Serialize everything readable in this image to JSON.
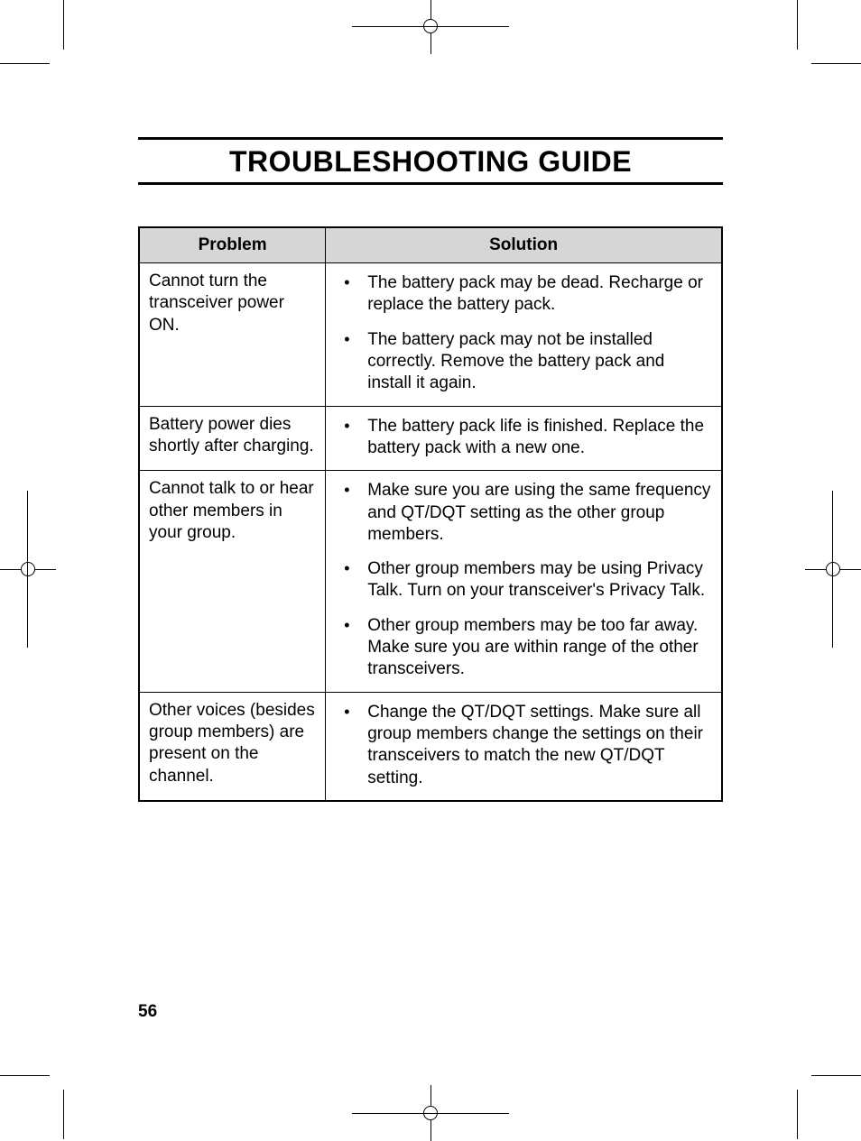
{
  "page": {
    "title": "TROUBLESHOOTING GUIDE",
    "page_number": "56"
  },
  "table": {
    "type": "table",
    "header_bg": "#d6d6d6",
    "border_color": "#000000",
    "columns": [
      "Problem",
      "Solution"
    ],
    "col_widths_pct": [
      32,
      68
    ],
    "rows": [
      {
        "problem": "Cannot turn the transceiver power ON.",
        "solutions": [
          "The battery pack may be dead.  Recharge or replace the battery pack.",
          "The battery pack may not be installed correctly.  Remove the battery pack and install it again."
        ]
      },
      {
        "problem": "Battery power dies shortly after charging.",
        "solutions": [
          "The battery pack life is finished.  Replace the battery pack with a new one."
        ]
      },
      {
        "problem": "Cannot talk to or hear other members in your group.",
        "solutions": [
          "Make sure you are using the same frequency and QT/DQT setting as the other group members.",
          "Other group members may be using Privacy Talk.  Turn on your transceiver's Privacy Talk.",
          "Other group members may be too far away.  Make sure you are within range of the other transceivers."
        ]
      },
      {
        "problem": "Other voices (besides group members) are present on the channel.",
        "solutions": [
          "Change the QT/DQT settings.  Make sure all group members change the settings on their transceivers to match the new QT/DQT setting."
        ]
      }
    ]
  },
  "typography": {
    "title_fontsize": 32,
    "body_fontsize": 19,
    "title_weight": 700
  },
  "colors": {
    "background": "#ffffff",
    "text": "#000000",
    "rule": "#000000"
  }
}
